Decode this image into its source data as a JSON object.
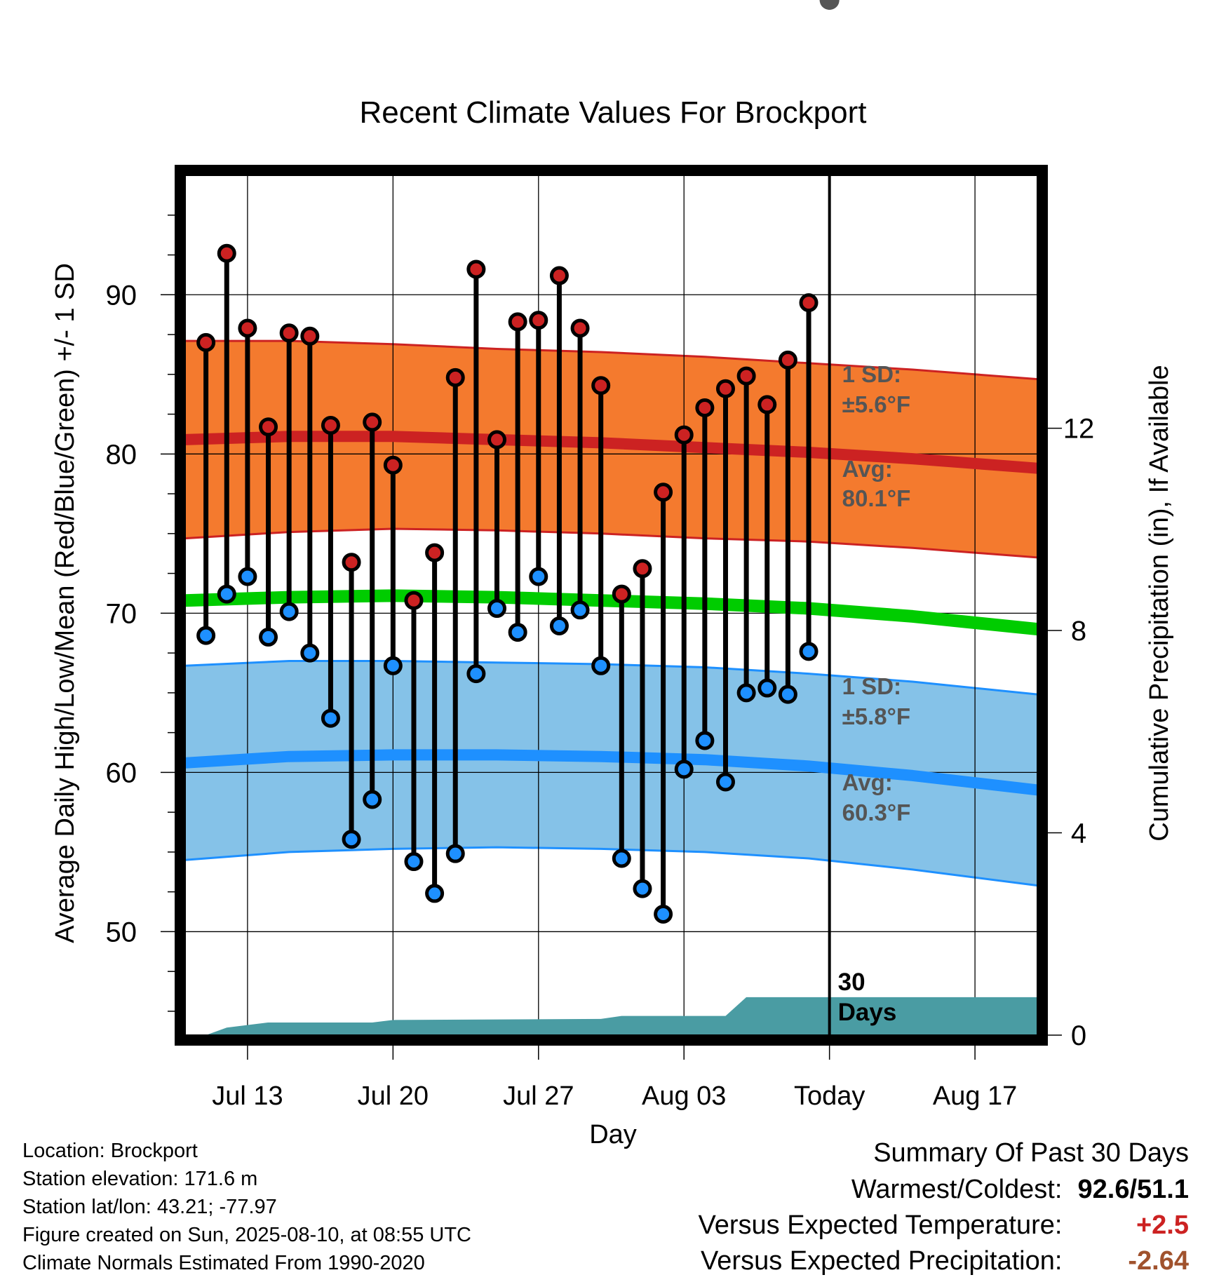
{
  "chart_data": {
    "type": "line",
    "title": "Recent Climate Values For Brockport",
    "xlabel": "Day",
    "ylabel": "Average Daily High/Low/Mean (Red/Blue/Green) +/- 1 SD",
    "y2label": "Cumulative Precipitation (in), If Available",
    "ylim": [
      43.5,
      97.5
    ],
    "y2lim": [
      0,
      17
    ],
    "xlim": [
      "2025-07-10",
      "2025-08-20"
    ],
    "x_ticks": [
      {
        "date": "2025-07-13",
        "label": "Jul 13"
      },
      {
        "date": "2025-07-20",
        "label": "Jul 20"
      },
      {
        "date": "2025-07-27",
        "label": "Jul 27"
      },
      {
        "date": "2025-08-03",
        "label": "Aug 03"
      },
      {
        "date": "2025-08-10",
        "label": "Today"
      },
      {
        "date": "2025-08-17",
        "label": "Aug 17"
      }
    ],
    "y_ticks": [
      50,
      60,
      70,
      80,
      90
    ],
    "y2_ticks": [
      0,
      4,
      8,
      12
    ],
    "grid": true,
    "colors": {
      "high": "#cc2222",
      "low": "#1e90ff",
      "mean": "#00cc00",
      "high_band": "#f47a2e",
      "low_band": "#85c2e8",
      "precip": "#4a9ca3"
    },
    "daily": [
      {
        "date": "2025-07-11",
        "high": 87.0,
        "low": 68.6
      },
      {
        "date": "2025-07-12",
        "high": 92.6,
        "low": 71.2
      },
      {
        "date": "2025-07-13",
        "high": 87.9,
        "low": 72.3
      },
      {
        "date": "2025-07-14",
        "high": 81.7,
        "low": 68.5
      },
      {
        "date": "2025-07-15",
        "high": 87.6,
        "low": 70.1
      },
      {
        "date": "2025-07-16",
        "high": 87.4,
        "low": 67.5
      },
      {
        "date": "2025-07-17",
        "high": 81.8,
        "low": 63.4
      },
      {
        "date": "2025-07-18",
        "high": 73.2,
        "low": 55.8
      },
      {
        "date": "2025-07-19",
        "high": 82.0,
        "low": 58.3
      },
      {
        "date": "2025-07-20",
        "high": 79.3,
        "low": 66.7
      },
      {
        "date": "2025-07-21",
        "high": 70.8,
        "low": 54.4
      },
      {
        "date": "2025-07-22",
        "high": 73.8,
        "low": 52.4
      },
      {
        "date": "2025-07-23",
        "high": 84.8,
        "low": 54.9
      },
      {
        "date": "2025-07-24",
        "high": 91.6,
        "low": 66.2
      },
      {
        "date": "2025-07-25",
        "high": 80.9,
        "low": 70.3
      },
      {
        "date": "2025-07-26",
        "high": 88.3,
        "low": 68.8
      },
      {
        "date": "2025-07-27",
        "high": 88.4,
        "low": 72.3
      },
      {
        "date": "2025-07-28",
        "high": 91.2,
        "low": 69.2
      },
      {
        "date": "2025-07-29",
        "high": 87.9,
        "low": 70.2
      },
      {
        "date": "2025-07-30",
        "high": 84.3,
        "low": 66.7
      },
      {
        "date": "2025-07-31",
        "high": 71.2,
        "low": 54.6
      },
      {
        "date": "2025-08-01",
        "high": 72.8,
        "low": 52.7
      },
      {
        "date": "2025-08-02",
        "high": 77.6,
        "low": 51.1
      },
      {
        "date": "2025-08-03",
        "high": 81.2,
        "low": 60.2
      },
      {
        "date": "2025-08-04",
        "high": 82.9,
        "low": 62.0
      },
      {
        "date": "2025-08-05",
        "high": 84.1,
        "low": 59.4
      },
      {
        "date": "2025-08-06",
        "high": 84.9,
        "low": 65.0
      },
      {
        "date": "2025-08-07",
        "high": 83.1,
        "low": 65.3
      },
      {
        "date": "2025-08-08",
        "high": 85.9,
        "low": 64.9
      },
      {
        "date": "2025-08-09",
        "high": 89.5,
        "low": 67.6
      }
    ],
    "normals": {
      "dates": [
        "2025-07-10",
        "2025-07-15",
        "2025-07-20",
        "2025-07-25",
        "2025-07-30",
        "2025-08-04",
        "2025-08-09",
        "2025-08-14",
        "2025-08-20"
      ],
      "high_avg": [
        80.9,
        81.1,
        81.1,
        80.9,
        80.7,
        80.4,
        80.1,
        79.7,
        79.1
      ],
      "high_sd": [
        6.2,
        6.0,
        5.8,
        5.7,
        5.7,
        5.7,
        5.6,
        5.6,
        5.6
      ],
      "low_avg": [
        60.6,
        61.0,
        61.1,
        61.1,
        61.0,
        60.8,
        60.4,
        59.8,
        58.9
      ],
      "low_sd": [
        6.1,
        6.0,
        5.9,
        5.8,
        5.8,
        5.8,
        5.8,
        5.9,
        6.0
      ],
      "mean_avg": [
        70.8,
        71.0,
        71.1,
        71.0,
        70.8,
        70.6,
        70.3,
        69.8,
        69.0
      ]
    },
    "precip_cumulative": {
      "dates": [
        "2025-07-10",
        "2025-07-11",
        "2025-07-12",
        "2025-07-14",
        "2025-07-19",
        "2025-07-20",
        "2025-07-30",
        "2025-07-31",
        "2025-08-05",
        "2025-08-06",
        "2025-08-20"
      ],
      "values": [
        0.0,
        0.0,
        0.15,
        0.25,
        0.25,
        0.3,
        0.32,
        0.38,
        0.38,
        0.75,
        0.75
      ]
    },
    "annotations": {
      "high_sd_label": "1 SD:",
      "high_sd_value": "±5.6°F",
      "high_avg_label": "Avg:",
      "high_avg_value": "80.1°F",
      "low_sd_label": "1 SD:",
      "low_sd_value": "±5.8°F",
      "low_avg_label": "Avg:",
      "low_avg_value": "60.3°F",
      "period_line1": "30",
      "period_line2": "Days"
    }
  },
  "footer": {
    "location": "Location: Brockport",
    "elevation": "Station elevation: 171.6 m",
    "latlon": "Station lat/lon: 43.21; -77.97",
    "created": "Figure created on Sun, 2025-08-10, at 08:55 UTC",
    "normals": "Climate Normals Estimated From 1990-2020"
  },
  "summary": {
    "title": "Summary Of Past 30 Days",
    "warmest_coldest_label": "Warmest/Coldest:",
    "warmest_coldest_value": "92.6/51.1",
    "temp_label": "Versus Expected Temperature:",
    "temp_value": "+2.5",
    "temp_color": "#cc2222",
    "precip_label": "Versus Expected Precipitation:",
    "precip_value": "-2.64",
    "precip_color": "#a0522d"
  }
}
